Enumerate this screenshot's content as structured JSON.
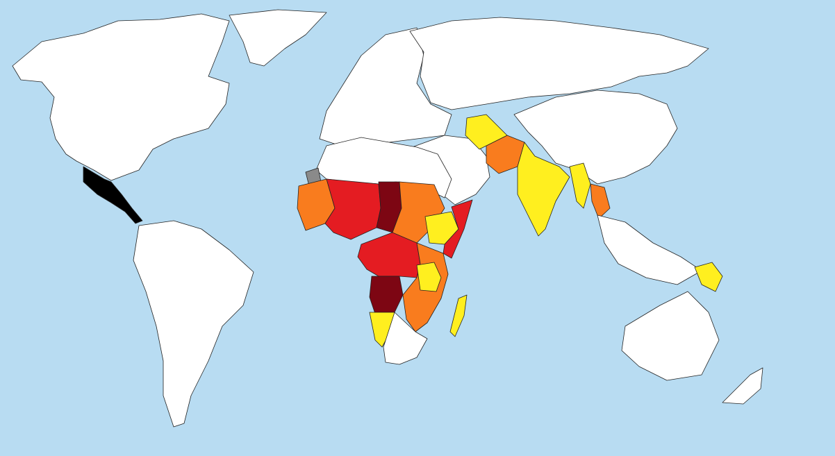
{
  "map": {
    "kind": "choropleth-world-map",
    "legend_visible": false,
    "colors": {
      "ocean": "#b8dcf2",
      "no_data_white": "#ffffff",
      "level_1_yellow": "#ffef1f",
      "level_2_orange": "#f97c1e",
      "level_3_red": "#e41c22",
      "level_4_dark_red": "#7d0613",
      "not_applicable_gray": "#8a8a8a",
      "outline": "#222222"
    },
    "regions": [
      {
        "name": "north-america",
        "category": "no_data_white"
      },
      {
        "name": "greenland",
        "category": "no_data_white"
      },
      {
        "name": "south-america",
        "category": "no_data_white"
      },
      {
        "name": "europe",
        "category": "no_data_white"
      },
      {
        "name": "russia-north-asia",
        "category": "no_data_white"
      },
      {
        "name": "china-east-asia",
        "category": "no_data_white"
      },
      {
        "name": "middle-east",
        "category": "no_data_white"
      },
      {
        "name": "north-africa",
        "category": "no_data_white"
      },
      {
        "name": "western-sahara",
        "category": "not_applicable_gray"
      },
      {
        "name": "west-africa-coast",
        "category": "level_2_orange"
      },
      {
        "name": "sahel",
        "category": "level_3_red"
      },
      {
        "name": "chad",
        "category": "level_4_dark_red"
      },
      {
        "name": "sudan",
        "category": "level_2_orange"
      },
      {
        "name": "ethiopia",
        "category": "level_1_yellow"
      },
      {
        "name": "somalia",
        "category": "level_3_red"
      },
      {
        "name": "central-africa",
        "category": "level_3_red"
      },
      {
        "name": "angola-drc-south",
        "category": "level_4_dark_red"
      },
      {
        "name": "east-africa",
        "category": "level_2_orange"
      },
      {
        "name": "tanzania",
        "category": "level_1_yellow"
      },
      {
        "name": "namibia",
        "category": "level_1_yellow"
      },
      {
        "name": "southern-africa",
        "category": "no_data_white"
      },
      {
        "name": "madagascar",
        "category": "level_1_yellow"
      },
      {
        "name": "afghanistan",
        "category": "level_2_orange"
      },
      {
        "name": "pakistan",
        "category": "level_1_yellow"
      },
      {
        "name": "india",
        "category": "level_1_yellow"
      },
      {
        "name": "myanmar",
        "category": "level_1_yellow"
      },
      {
        "name": "laos-cambodia",
        "category": "level_2_orange"
      },
      {
        "name": "papua-new-guinea",
        "category": "level_1_yellow"
      },
      {
        "name": "southeast-asia",
        "category": "no_data_white"
      },
      {
        "name": "australia",
        "category": "no_data_white"
      },
      {
        "name": "new-zealand",
        "category": "no_data_white"
      }
    ]
  }
}
